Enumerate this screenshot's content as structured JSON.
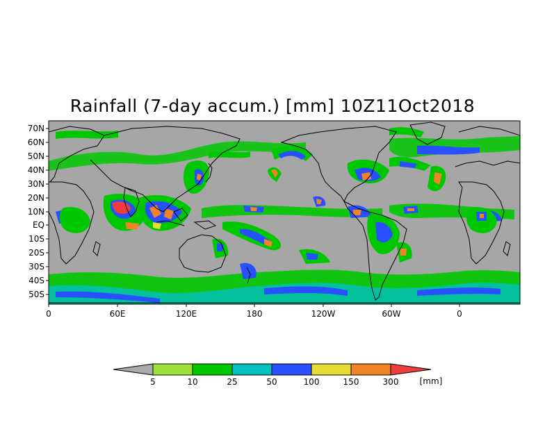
{
  "title": "Rainfall (7-day accum.) [mm] 10Z11Oct2018",
  "map": {
    "lat_labels": [
      "70N",
      "60N",
      "50N",
      "40N",
      "30N",
      "20N",
      "10N",
      "EQ",
      "10S",
      "20S",
      "30S",
      "40S",
      "50S"
    ],
    "lon_labels": [
      "0",
      "60E",
      "120E",
      "180",
      "120W",
      "60W",
      "0"
    ],
    "lon_range": [
      0,
      395
    ],
    "lat_range": [
      -58,
      75
    ],
    "background_color": "#a6a6a6",
    "coastline_color": "#000000"
  },
  "colorbar": {
    "unit": "[mm]",
    "labels": [
      "5",
      "10",
      "25",
      "50",
      "100",
      "150",
      "300"
    ],
    "colors": [
      "#aaaaaa",
      "#9be33b",
      "#00c800",
      "#00c0c0",
      "#2850ff",
      "#e6dc32",
      "#f08228",
      "#f03c3c"
    ]
  }
}
